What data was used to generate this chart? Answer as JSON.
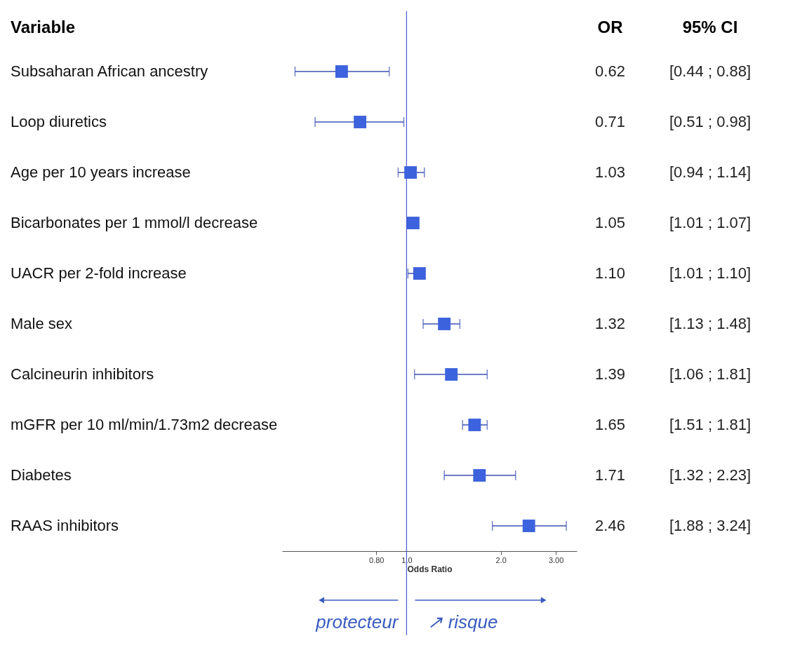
{
  "chart_data": {
    "type": "scatter",
    "orientation": "horizontal",
    "ylabel": "Variable",
    "xlabel": "Odds Ratio",
    "categories": [
      "Subsaharan African ancestry",
      "Loop diuretics",
      "Age  per 10 years increase",
      "Bicarbonates  per 1 mmol/l decrease",
      "UACR  per 2-fold increase",
      "Male sex",
      "Calcineurin inhibitors",
      "mGFR  per 10 ml/min/1.73m2 decrease",
      "Diabetes",
      "RAAS inhibitors"
    ],
    "values": [
      0.62,
      0.71,
      1.03,
      1.05,
      1.1,
      1.32,
      1.39,
      1.65,
      1.71,
      2.46
    ],
    "errors": [
      [
        0.44,
        0.88
      ],
      [
        0.51,
        0.98
      ],
      [
        0.94,
        1.14
      ],
      null,
      [
        1.01,
        1.1
      ],
      [
        1.13,
        1.48
      ],
      [
        1.06,
        1.81
      ],
      [
        1.51,
        1.81
      ],
      [
        1.32,
        2.23
      ],
      [
        1.88,
        3.24
      ]
    ],
    "color": "#3d62dd",
    "marker": "square",
    "log": "x",
    "grid": false,
    "xlim": [
      0.4,
      3.5
    ],
    "xticks": [
      {
        "value": 0.8,
        "label": "0.80"
      },
      {
        "value": 1,
        "label": "1.0"
      },
      {
        "value": 2,
        "label": "2.0"
      },
      {
        "value": 3,
        "label": "3.00"
      }
    ],
    "ref_lines": [
      {
        "axis": "x",
        "value": 1,
        "color": "#4a5bd0"
      }
    ],
    "annotations": [
      "OR",
      "95% CI",
      "0.62",
      "0.71",
      "1.03",
      "1.05",
      "1.10",
      "1.32",
      "1.39",
      "1.65",
      "1.71",
      "2.46",
      "[0.44 ; 0.88]",
      "[0.51 ; 0.98]",
      "[0.94 ; 1.14]",
      "[1.01 ; 1.07]",
      "[1.01 ; 1.10]",
      "[1.13 ; 1.48]",
      "[1.06 ; 1.81]",
      "[1.51 ; 1.81]",
      "[1.32 ; 2.23]",
      "[1.88 ; 3.24]",
      "protecteur",
      "↗ risque"
    ]
  }
}
